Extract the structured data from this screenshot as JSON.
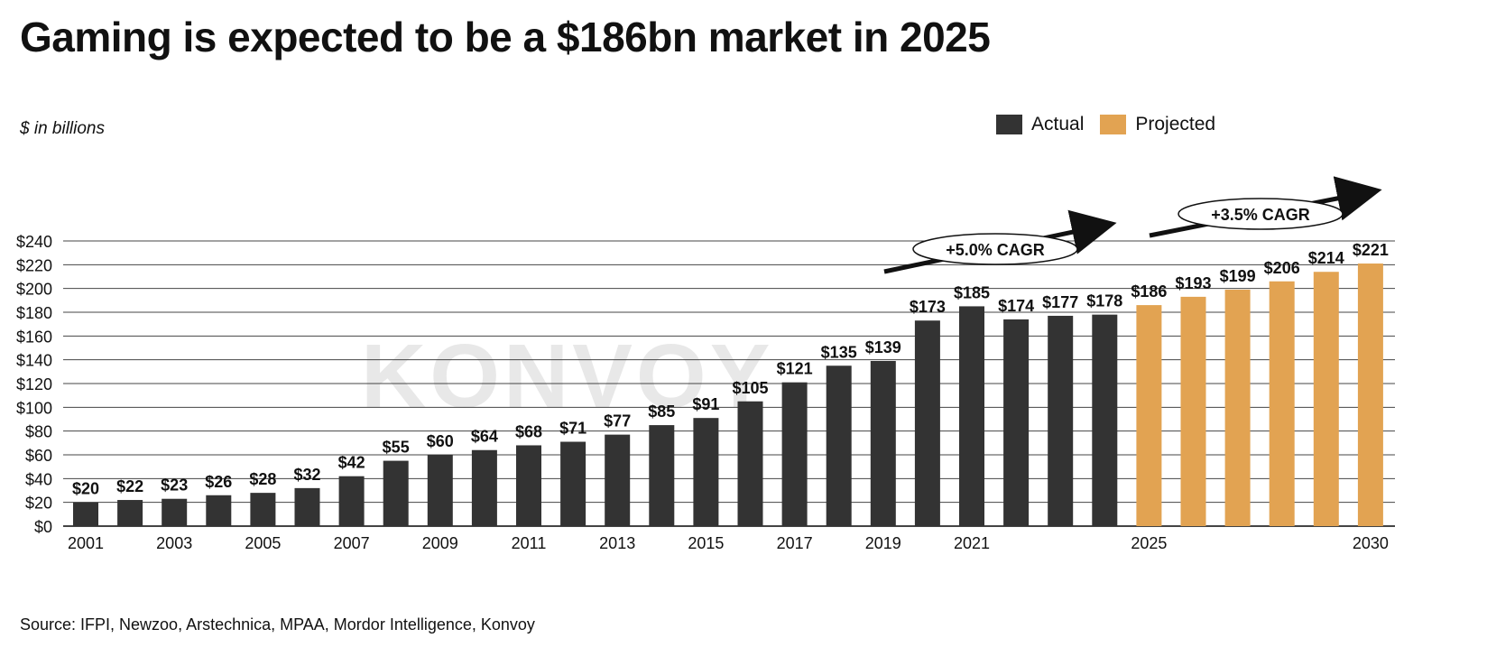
{
  "title": "Gaming is expected to be a $186bn market in 2025",
  "unit_label": "$ in billions",
  "legend": [
    {
      "label": "Actual",
      "color": "#333333"
    },
    {
      "label": "Projected",
      "color": "#E2A352"
    }
  ],
  "source": "Source: IFPI, Newzoo, Arstechnica, MPAA, Mordor Intelligence, Konvoy",
  "watermark": "KONVOY",
  "annotations": [
    {
      "text": "+5.0% CAGR"
    },
    {
      "text": "+3.5% CAGR"
    }
  ],
  "chart_data": {
    "type": "bar",
    "categories": [
      "2001",
      "2002",
      "2003",
      "2004",
      "2005",
      "2006",
      "2007",
      "2008",
      "2009",
      "2010",
      "2011",
      "2012",
      "2013",
      "2014",
      "2015",
      "2016",
      "2017",
      "2018",
      "2019",
      "2020",
      "2021",
      "2022",
      "2023",
      "2024",
      "2025",
      "2026",
      "2027",
      "2028",
      "2029",
      "2030"
    ],
    "x_tick_labels": [
      "2001",
      "",
      "2003",
      "",
      "2005",
      "",
      "2007",
      "",
      "2009",
      "",
      "2011",
      "",
      "2013",
      "",
      "2015",
      "",
      "2017",
      "",
      "2019",
      "",
      "2021",
      "",
      "",
      "",
      "2025",
      "",
      "",
      "",
      "",
      "2030"
    ],
    "series": [
      {
        "name": "Actual",
        "color": "#333333",
        "values": [
          20,
          22,
          23,
          26,
          28,
          32,
          42,
          55,
          60,
          64,
          68,
          71,
          77,
          85,
          91,
          105,
          121,
          135,
          139,
          173,
          185,
          174,
          177,
          178,
          null,
          null,
          null,
          null,
          null,
          null
        ]
      },
      {
        "name": "Projected",
        "color": "#E2A352",
        "values": [
          null,
          null,
          null,
          null,
          null,
          null,
          null,
          null,
          null,
          null,
          null,
          null,
          null,
          null,
          null,
          null,
          null,
          null,
          null,
          null,
          null,
          null,
          null,
          null,
          186,
          193,
          199,
          206,
          214,
          221
        ]
      }
    ],
    "data_labels": [
      "$20",
      "$22",
      "$23",
      "$26",
      "$28",
      "$32",
      "$42",
      "$55",
      "$60",
      "$64",
      "$68",
      "$71",
      "$77",
      "$85",
      "$91",
      "$105",
      "$121",
      "$135",
      "$139",
      "$173",
      "$185",
      "$174",
      "$177",
      "$178",
      "$186",
      "$193",
      "$199",
      "$206",
      "$214",
      "$221"
    ],
    "ylim": [
      0,
      240
    ],
    "y_ticks": [
      0,
      20,
      40,
      60,
      80,
      100,
      120,
      140,
      160,
      180,
      200,
      220,
      240
    ],
    "y_tick_labels": [
      "$0",
      "$20",
      "$40",
      "$60",
      "$80",
      "$100",
      "$120",
      "$140",
      "$160",
      "$180",
      "$200",
      "$220",
      "$240"
    ],
    "grid": true,
    "legend_position": "top-right"
  }
}
